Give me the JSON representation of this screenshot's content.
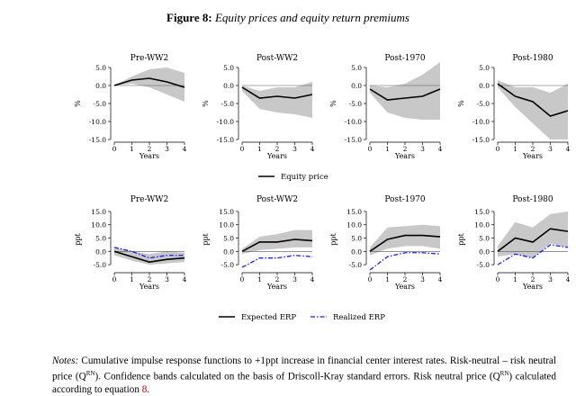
{
  "figure": {
    "label": "Figure 8:",
    "caption": "Equity prices and equity return premiums"
  },
  "notes": {
    "prefix": "Notes:",
    "line1": "Cumulative impulse response functions to +1ppt increase in financial center interest rates. Risk-neutral – risk neutral price (Q",
    "sup1": "RN",
    "line2": "). Confidence bands calculated on the basis of Driscoll-Kray standard errors. Risk neutral price (Q",
    "sup2": "RN",
    "line3": ") calculated according to equation ",
    "eq_ref": "8",
    "line4": "."
  },
  "colors": {
    "band": "#c8c8c8",
    "line": "#000000",
    "realized": "#1a1aff",
    "zero": "#555555"
  },
  "chart_data": [
    {
      "type": "line",
      "title": "Pre-WW2",
      "xlabel": "Years",
      "ylabel": "%",
      "x": [
        0,
        1,
        2,
        3,
        4
      ],
      "ylim": [
        -15,
        5
      ],
      "yticks": [
        5,
        0,
        -5,
        -10,
        -15
      ],
      "yticklabels": [
        "5.0",
        "0.0",
        "-5.0",
        "-10.0",
        "-15.0"
      ],
      "series": [
        {
          "name": "Equity price",
          "values": [
            0,
            1.5,
            2,
            1,
            -0.5
          ],
          "band_upper": [
            0,
            2.5,
            4.5,
            5,
            3.5
          ],
          "band_lower": [
            0,
            0.5,
            -0.5,
            -2.5,
            -4.5
          ]
        }
      ]
    },
    {
      "type": "line",
      "title": "Post-WW2",
      "xlabel": "Years",
      "ylabel": "%",
      "x": [
        0,
        1,
        2,
        3,
        4
      ],
      "ylim": [
        -15,
        5
      ],
      "yticks": [
        5,
        0,
        -5,
        -10,
        -15
      ],
      "yticklabels": [
        "5.0",
        "0.0",
        "-5.0",
        "-10.0",
        "-15.0"
      ],
      "series": [
        {
          "name": "Equity price",
          "values": [
            -0.5,
            -3.5,
            -3,
            -3.5,
            -2.5
          ],
          "band_upper": [
            0,
            -1.5,
            -0.5,
            -0.5,
            1
          ],
          "band_lower": [
            -1.5,
            -6.5,
            -7.5,
            -8,
            -9
          ]
        }
      ]
    },
    {
      "type": "line",
      "title": "Post-1970",
      "xlabel": "Years",
      "ylabel": "%",
      "x": [
        0,
        1,
        2,
        3,
        4
      ],
      "ylim": [
        -15,
        5
      ],
      "yticks": [
        5,
        0,
        -5,
        -10,
        -15
      ],
      "yticklabels": [
        "5.0",
        "0.0",
        "-5.0",
        "-10.0",
        "-15.0"
      ],
      "series": [
        {
          "name": "Equity price",
          "values": [
            -1,
            -4,
            -3.5,
            -3,
            -1
          ],
          "band_upper": [
            0,
            -0.5,
            0.5,
            3,
            6.5
          ],
          "band_lower": [
            -2,
            -7.5,
            -9,
            -9.5,
            -9.5
          ]
        }
      ]
    },
    {
      "type": "line",
      "title": "Post-1980",
      "xlabel": "Years",
      "ylabel": "%",
      "x": [
        0,
        1,
        2,
        3,
        4
      ],
      "ylim": [
        -15,
        5
      ],
      "yticks": [
        5,
        0,
        -5,
        -10,
        -15
      ],
      "yticklabels": [
        "5.0",
        "0.0",
        "-5.0",
        "-10.0",
        "-15.0"
      ],
      "series": [
        {
          "name": "Equity price",
          "values": [
            0.5,
            -3,
            -4.5,
            -8.5,
            -7
          ],
          "band_upper": [
            1.5,
            -0.5,
            -0.5,
            -2,
            0.5
          ],
          "band_lower": [
            -0.5,
            -6,
            -10.5,
            -15,
            -15
          ]
        }
      ]
    },
    {
      "type": "line",
      "title": "Pre-WW2",
      "xlabel": "Years",
      "ylabel": "ppt",
      "x": [
        0,
        1,
        2,
        3,
        4
      ],
      "ylim": [
        -7,
        16
      ],
      "yticks": [
        15,
        10,
        5,
        0,
        -5
      ],
      "yticklabels": [
        "15.0",
        "10.0",
        "5.0",
        "0.0",
        "-5.0"
      ],
      "series": [
        {
          "name": "Expected ERP",
          "values": [
            0,
            -2,
            -4,
            -3,
            -2.5
          ],
          "band_upper": [
            1.5,
            0,
            -1,
            0,
            -0.5
          ],
          "band_lower": [
            -1.5,
            -3.5,
            -5,
            -4.5,
            -4
          ]
        },
        {
          "name": "Realized ERP",
          "values": [
            1.5,
            0,
            -2.5,
            -1.5,
            -1.5
          ]
        }
      ]
    },
    {
      "type": "line",
      "title": "Post-WW2",
      "xlabel": "Years",
      "ylabel": "ppt",
      "x": [
        0,
        1,
        2,
        3,
        4
      ],
      "ylim": [
        -7,
        16
      ],
      "yticks": [
        15,
        10,
        5,
        0,
        -5
      ],
      "yticklabels": [
        "15.0",
        "10.0",
        "5.0",
        "0.0",
        "-5.0"
      ],
      "series": [
        {
          "name": "Expected ERP",
          "values": [
            0,
            3.5,
            3.5,
            4.5,
            4
          ],
          "band_upper": [
            1,
            5.5,
            6.5,
            8,
            8
          ],
          "band_lower": [
            -1,
            0.5,
            1,
            1.5,
            1.5
          ]
        },
        {
          "name": "Realized ERP",
          "values": [
            -6,
            -2.5,
            -2.5,
            -1.5,
            -2
          ]
        }
      ]
    },
    {
      "type": "line",
      "title": "Post-1970",
      "xlabel": "Years",
      "ylabel": "ppt",
      "x": [
        0,
        1,
        2,
        3,
        4
      ],
      "ylim": [
        -7,
        16
      ],
      "yticks": [
        15,
        10,
        5,
        0,
        -5
      ],
      "yticklabels": [
        "15.0",
        "10.0",
        "5.0",
        "0.0",
        "-5.0"
      ],
      "series": [
        {
          "name": "Expected ERP",
          "values": [
            0,
            4.5,
            6,
            6,
            5.5
          ],
          "band_upper": [
            1.5,
            9,
            9.5,
            10,
            9.5
          ],
          "band_lower": [
            -1.5,
            1,
            2,
            2,
            1
          ]
        },
        {
          "name": "Realized ERP",
          "values": [
            -7,
            -2,
            -0.5,
            -0.5,
            -1
          ]
        }
      ]
    },
    {
      "type": "line",
      "title": "Post-1980",
      "xlabel": "Years",
      "ylabel": "ppt",
      "x": [
        0,
        1,
        2,
        3,
        4
      ],
      "ylim": [
        -7,
        16
      ],
      "yticks": [
        15,
        10,
        5,
        0,
        -5
      ],
      "yticklabels": [
        "15.0",
        "10.0",
        "5.0",
        "0.0",
        "-5.0"
      ],
      "series": [
        {
          "name": "Expected ERP",
          "values": [
            0,
            5,
            3.5,
            8.5,
            7.5
          ],
          "band_upper": [
            2,
            11,
            9,
            14,
            15
          ],
          "band_lower": [
            -2,
            -1,
            -2.5,
            3,
            1.5
          ]
        },
        {
          "name": "Realized ERP",
          "values": [
            -5,
            -1,
            -2.5,
            2.5,
            1.5
          ]
        }
      ]
    }
  ],
  "legends": {
    "top": [
      "Equity price"
    ],
    "bottom": [
      "Expected ERP",
      "Realized ERP"
    ]
  }
}
